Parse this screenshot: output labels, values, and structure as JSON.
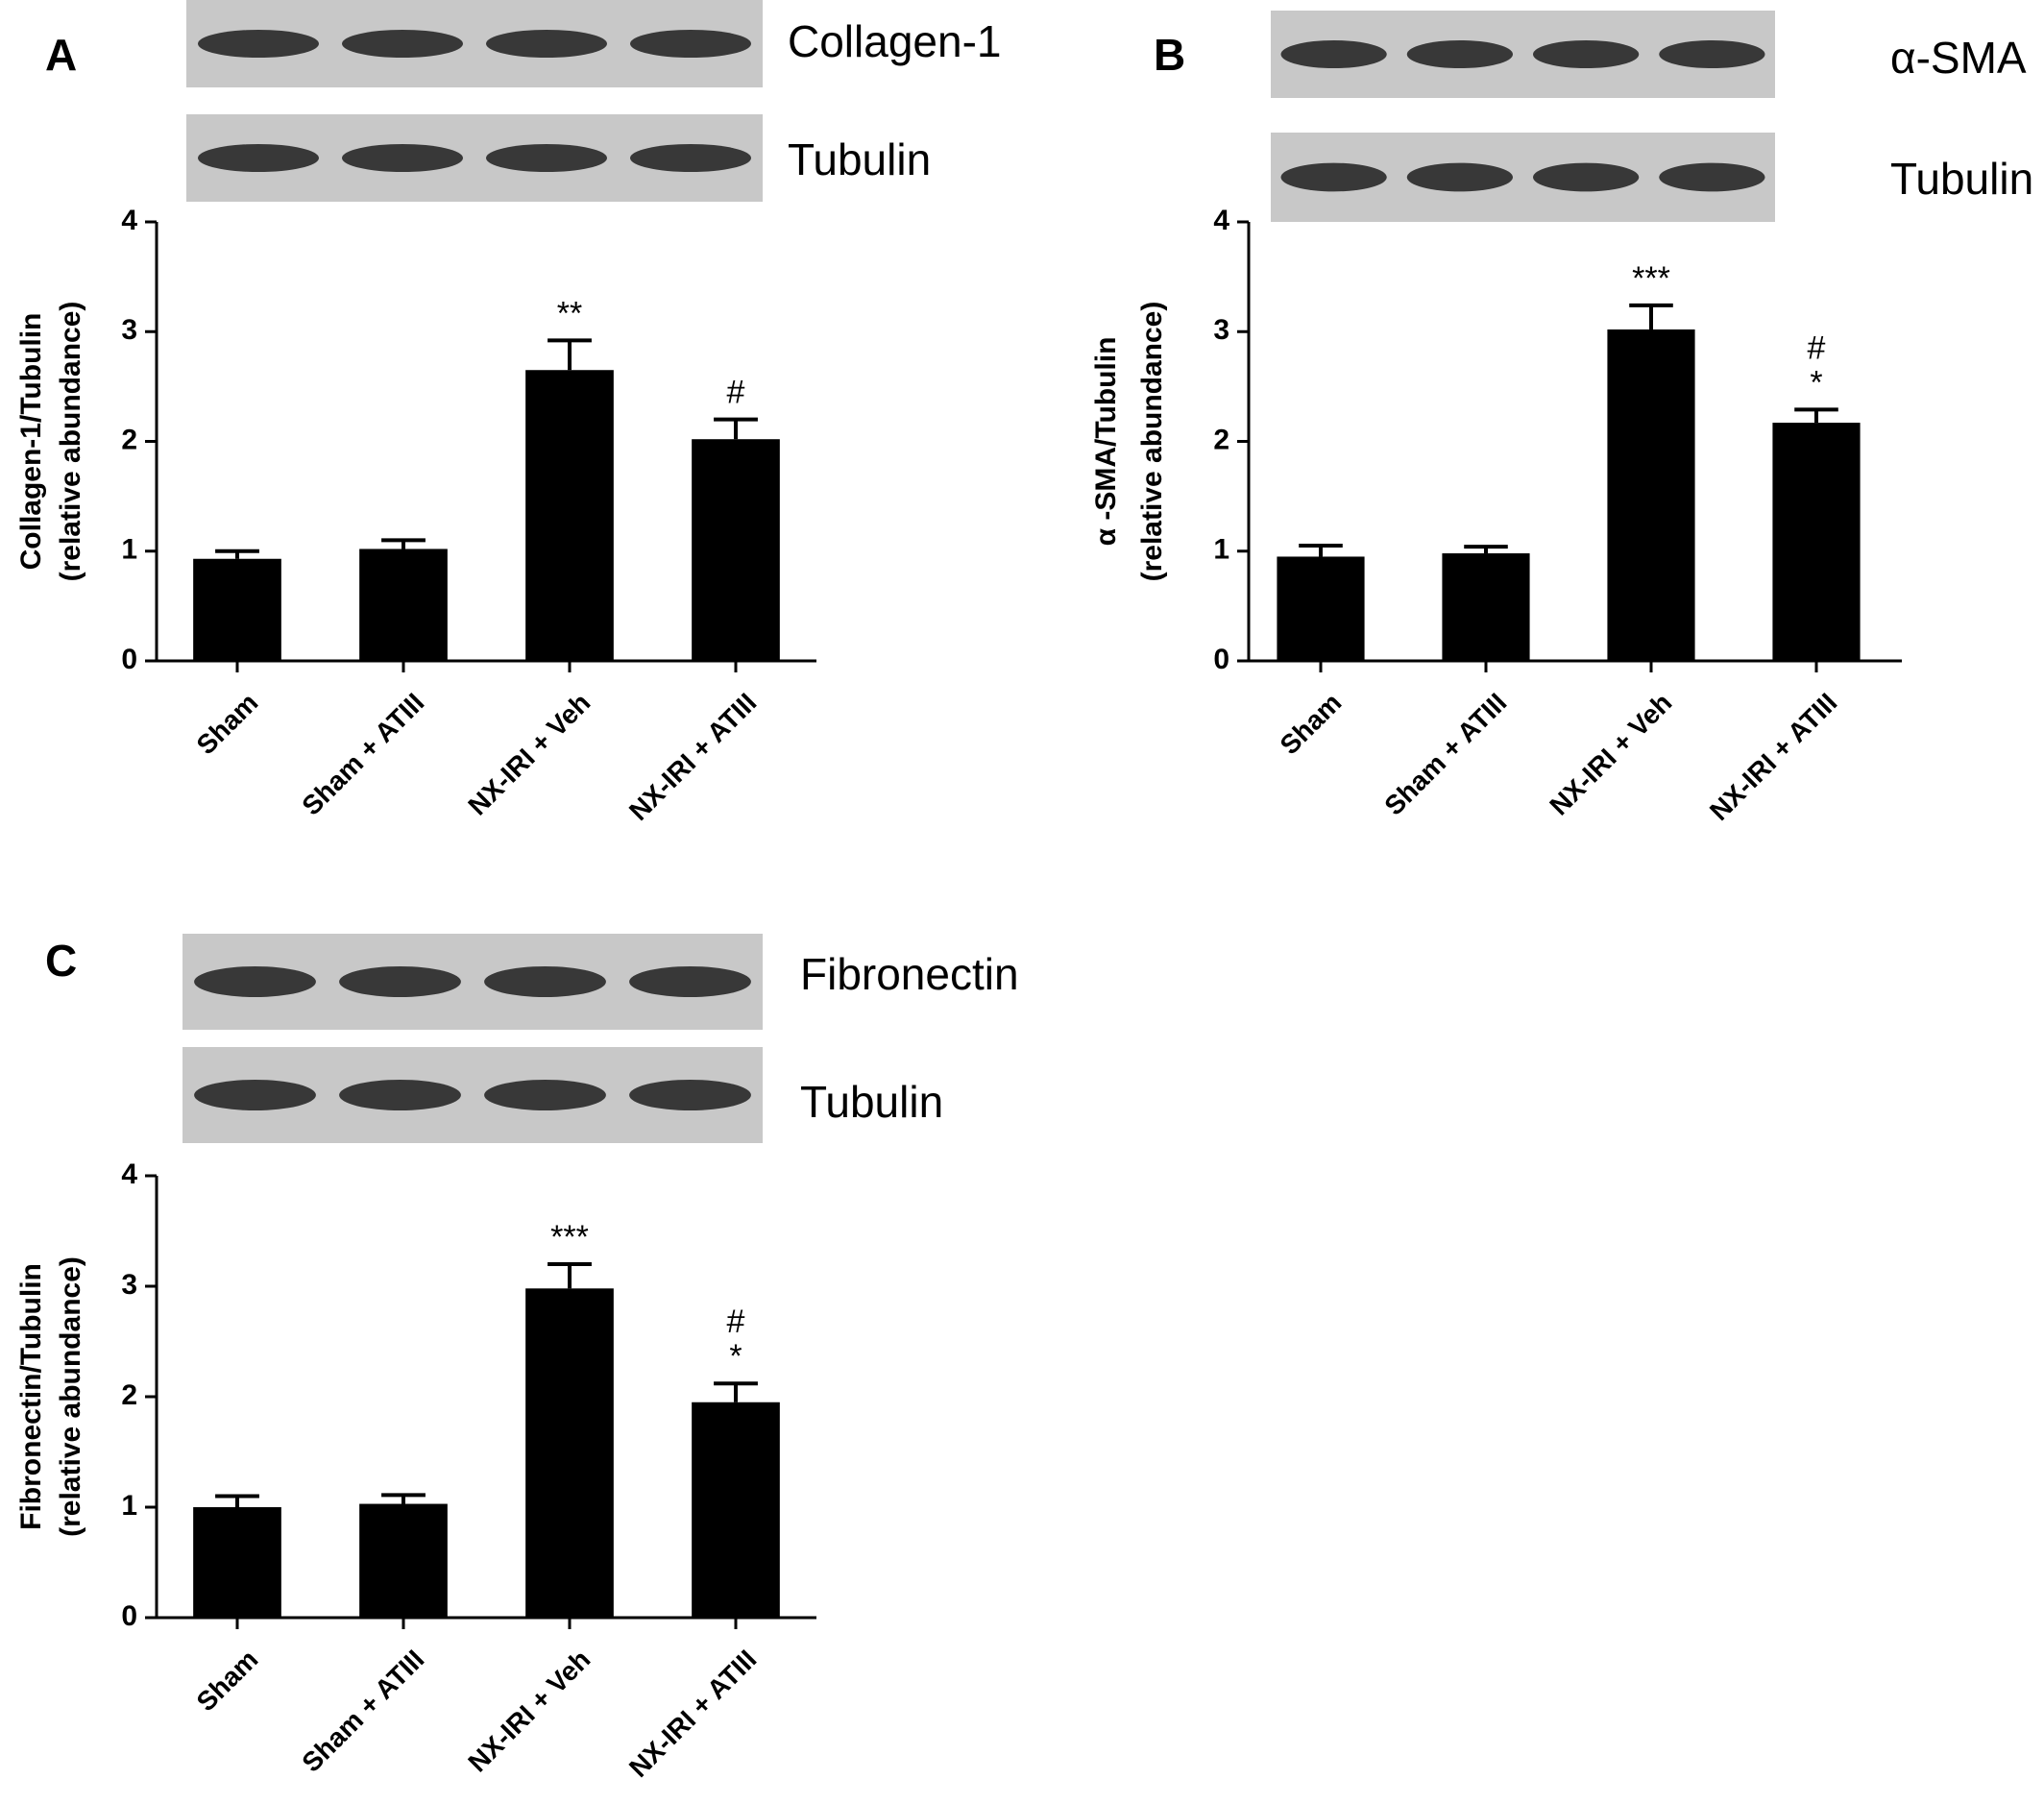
{
  "chart_data": [
    {
      "type": "bar",
      "panel": "A",
      "blot_labels": [
        "Collagen-1",
        "Tubulin"
      ],
      "y_label": [
        "Collagen-1/Tubulin",
        "(relative abundance)"
      ],
      "categories": [
        "Sham",
        "Sham + ATIII",
        "NX-IRI + Veh",
        "NX-IRI + ATIII"
      ],
      "values": [
        0.93,
        1.02,
        2.65,
        2.02
      ],
      "errors": [
        0.07,
        0.08,
        0.27,
        0.18
      ],
      "significance": [
        null,
        null,
        [
          "**"
        ],
        [
          "#"
        ]
      ],
      "color": "#000000",
      "ylim": [
        0,
        4
      ],
      "yticks": [
        0,
        1,
        2,
        3,
        4
      ]
    },
    {
      "type": "bar",
      "panel": "B",
      "blot_labels": [
        "α-SMA",
        "Tubulin"
      ],
      "y_label": [
        "α -SMA/Tubulin",
        "(relative abundance)"
      ],
      "categories": [
        "Sham",
        "Sham + ATIII",
        "NX-IRI + Veh",
        "NX-IRI + ATIII"
      ],
      "values": [
        0.95,
        0.98,
        3.02,
        2.17
      ],
      "errors": [
        0.1,
        0.06,
        0.22,
        0.12
      ],
      "significance": [
        null,
        null,
        [
          "***"
        ],
        [
          "#",
          "*"
        ]
      ],
      "color": "#000000",
      "ylim": [
        0,
        4
      ],
      "yticks": [
        0,
        1,
        2,
        3,
        4
      ]
    },
    {
      "type": "bar",
      "panel": "C",
      "blot_labels": [
        "Fibronectin",
        "Tubulin"
      ],
      "y_label": [
        "Fibronectin/Tubulin",
        "(relative abundance)"
      ],
      "categories": [
        "Sham",
        "Sham + ATIII",
        "NX-IRI + Veh",
        "NX-IRI + ATIII"
      ],
      "values": [
        1.0,
        1.03,
        2.98,
        1.95
      ],
      "errors": [
        0.1,
        0.08,
        0.22,
        0.17
      ],
      "significance": [
        null,
        null,
        [
          "***"
        ],
        [
          "#",
          "*"
        ]
      ],
      "color": "#000000",
      "ylim": [
        0,
        4
      ],
      "yticks": [
        0,
        1,
        2,
        3,
        4
      ]
    }
  ]
}
